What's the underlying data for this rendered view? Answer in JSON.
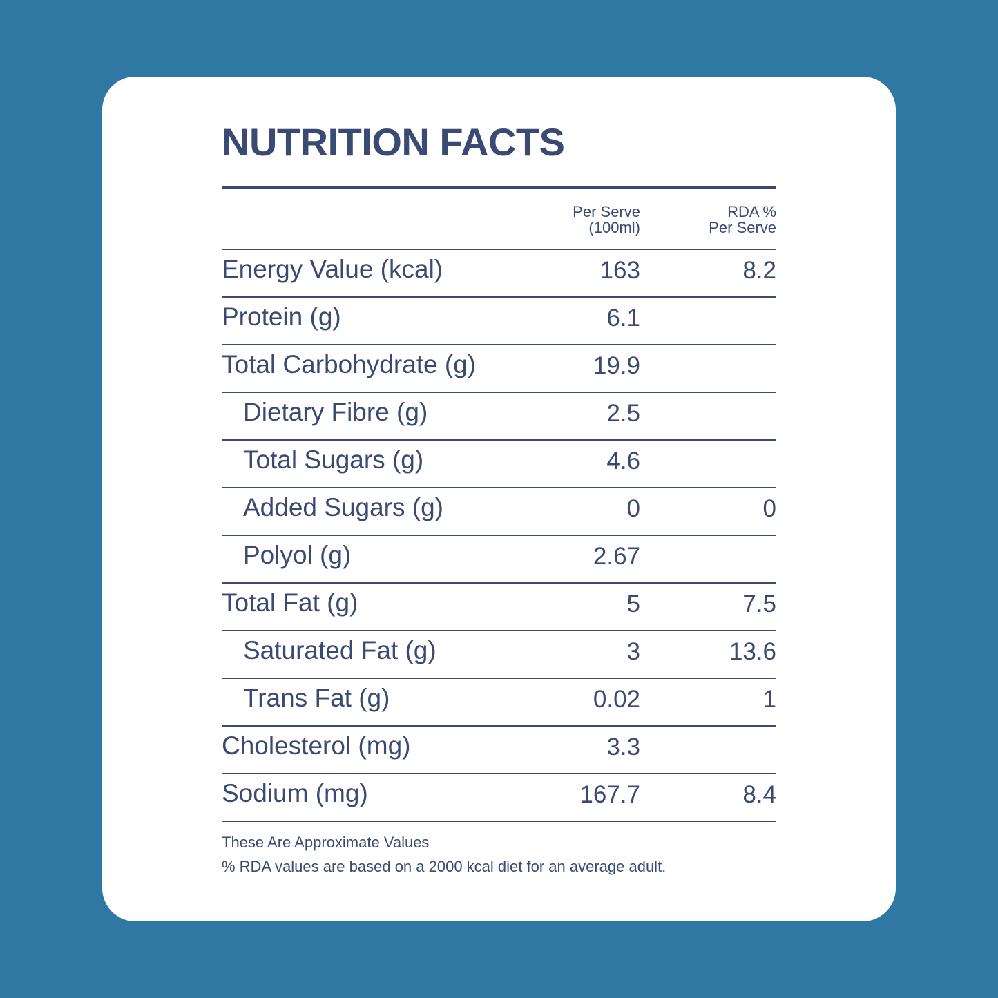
{
  "title": "NUTRITION FACTS",
  "columns": {
    "per_serve": [
      "Per Serve",
      "(100ml)"
    ],
    "rda": [
      "RDA %",
      "Per Serve"
    ]
  },
  "rows": [
    {
      "label": "Energy Value (kcal)",
      "per_serve": "163",
      "rda": "8.2",
      "indent": false
    },
    {
      "label": "Protein (g)",
      "per_serve": "6.1",
      "rda": "",
      "indent": false
    },
    {
      "label": "Total Carbohydrate (g)",
      "per_serve": "19.9",
      "rda": "",
      "indent": false
    },
    {
      "label": "Dietary Fibre (g)",
      "per_serve": "2.5",
      "rda": "",
      "indent": true
    },
    {
      "label": "Total Sugars (g)",
      "per_serve": "4.6",
      "rda": "",
      "indent": true
    },
    {
      "label": "Added Sugars (g)",
      "per_serve": "0",
      "rda": "0",
      "indent": true
    },
    {
      "label": "Polyol (g)",
      "per_serve": "2.67",
      "rda": "",
      "indent": true
    },
    {
      "label": "Total Fat (g)",
      "per_serve": "5",
      "rda": "7.5",
      "indent": false
    },
    {
      "label": "Saturated Fat (g)",
      "per_serve": "3",
      "rda": "13.6",
      "indent": true
    },
    {
      "label": "Trans Fat (g)",
      "per_serve": "0.02",
      "rda": "1",
      "indent": true
    },
    {
      "label": "Cholesterol (mg)",
      "per_serve": "3.3",
      "rda": "",
      "indent": false
    },
    {
      "label": "Sodium (mg)",
      "per_serve": "167.7",
      "rda": "8.4",
      "indent": false
    }
  ],
  "footnotes": [
    "These Are Approximate Values",
    "% RDA values are based on a 2000 kcal diet for an average adult."
  ],
  "colors": {
    "background": "#2f78a4",
    "card": "#ffffff",
    "text": "#3a4a73"
  }
}
